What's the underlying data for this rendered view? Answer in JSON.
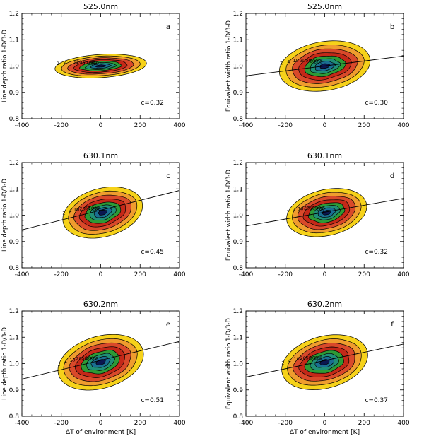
{
  "colors": {
    "levels": [
      "#f6d21a",
      "#ef9c2e",
      "#d9492a",
      "#c42818",
      "#2d9a36",
      "#1f8f76",
      "#1a6e92",
      "#0b1650"
    ],
    "outline": "#000000"
  },
  "level_values": [
    2,
    4,
    10,
    20,
    50,
    100,
    200,
    400
  ],
  "chart_data": [
    {
      "type": "contour",
      "panel": "a",
      "title": "525.0nm",
      "xlabel": "",
      "ylabel": "Line depth ratio  1-D/3-D",
      "xlim": [
        -400,
        400
      ],
      "ylim": [
        0.8,
        1.2
      ],
      "xticks": [
        -400,
        -200,
        0,
        200,
        400
      ],
      "yticks": [
        0.8,
        0.9,
        1.0,
        1.1,
        1.2
      ],
      "annotation": "c=0.32",
      "fit_line": null,
      "distribution": {
        "center": [
          0,
          1.0
        ],
        "sd_x": 95,
        "sd_y": 0.018,
        "rho": 0.25,
        "extent": 2.45,
        "taper": 0.12
      },
      "contour_labels": [
        "2",
        "4",
        "10",
        "20",
        "50",
        "100",
        "200"
      ]
    },
    {
      "type": "contour",
      "panel": "b",
      "title": "525.0nm",
      "xlabel": "",
      "ylabel": "Equivalent width ratio  1-D/3-D",
      "xlim": [
        -400,
        400
      ],
      "ylim": [
        0.8,
        1.2
      ],
      "xticks": [
        -400,
        -200,
        0,
        200,
        400
      ],
      "yticks": [
        0.8,
        0.9,
        1.0,
        1.1,
        1.2
      ],
      "annotation": "c=0.30",
      "fit_line": {
        "x": [
          -400,
          400
        ],
        "y": [
          0.963,
          1.038
        ]
      },
      "distribution": {
        "center": [
          0,
          1.0
        ],
        "sd_x": 95,
        "sd_y": 0.038,
        "rho": 0.3,
        "extent": 2.45,
        "taper": 0.1
      },
      "contour_labels": [
        "2",
        "4",
        "10",
        "20",
        "50",
        "100",
        "200"
      ]
    },
    {
      "type": "contour",
      "panel": "c",
      "title": "630.1nm",
      "xlabel": "",
      "ylabel": "Line depth ratio  1-D/3-D",
      "xlim": [
        -400,
        400
      ],
      "ylim": [
        0.8,
        1.2
      ],
      "xticks": [
        -400,
        -200,
        0,
        200,
        400
      ],
      "yticks": [
        0.8,
        0.9,
        1.0,
        1.1,
        1.2
      ],
      "annotation": "c=0.45",
      "fit_line": {
        "x": [
          -400,
          400
        ],
        "y": [
          0.944,
          1.094
        ]
      },
      "distribution": {
        "center": [
          10,
          1.01
        ],
        "sd_x": 90,
        "sd_y": 0.04,
        "rho": 0.45,
        "extent": 2.3,
        "taper": 0.05
      },
      "contour_labels": [
        "2",
        "4",
        "10",
        "20",
        "50",
        "100",
        "200"
      ]
    },
    {
      "type": "contour",
      "panel": "d",
      "title": "630.1nm",
      "xlabel": "",
      "ylabel": "Equivalent width ratio  1-D/3-D",
      "xlim": [
        -400,
        400
      ],
      "ylim": [
        0.8,
        1.2
      ],
      "xticks": [
        -400,
        -200,
        0,
        200,
        400
      ],
      "yticks": [
        0.8,
        0.9,
        1.0,
        1.1,
        1.2
      ],
      "annotation": "c=0.32",
      "fit_line": {
        "x": [
          -400,
          400
        ],
        "y": [
          0.959,
          1.064
        ]
      },
      "distribution": {
        "center": [
          10,
          1.01
        ],
        "sd_x": 90,
        "sd_y": 0.038,
        "rho": 0.4,
        "extent": 2.3,
        "taper": 0.05
      },
      "contour_labels": [
        "2",
        "4",
        "10",
        "20",
        "50",
        "100",
        "200"
      ]
    },
    {
      "type": "contour",
      "panel": "e",
      "title": "630.2nm",
      "xlabel": "ΔT of environment [K]",
      "ylabel": "Line depth ratio  1-D/3-D",
      "xlim": [
        -400,
        400
      ],
      "ylim": [
        0.8,
        1.2
      ],
      "xticks": [
        -400,
        -200,
        0,
        200,
        400
      ],
      "yticks": [
        0.8,
        0.9,
        1.0,
        1.1,
        1.2
      ],
      "annotation": "c=0.51",
      "fit_line": {
        "x": [
          -400,
          400
        ],
        "y": [
          0.941,
          1.084
        ]
      },
      "distribution": {
        "center": [
          0,
          1.005
        ],
        "sd_x": 95,
        "sd_y": 0.042,
        "rho": 0.5,
        "extent": 2.35,
        "taper": 0.05
      },
      "contour_labels": [
        "2",
        "4",
        "10",
        "20",
        "50",
        "100",
        "200"
      ]
    },
    {
      "type": "contour",
      "panel": "f",
      "title": "630.2nm",
      "xlabel": "ΔT of environment [K]",
      "ylabel": "Equivalent width ratio  1-D/3-D",
      "xlim": [
        -400,
        400
      ],
      "ylim": [
        0.8,
        1.2
      ],
      "xticks": [
        -400,
        -200,
        0,
        200,
        400
      ],
      "yticks": [
        0.8,
        0.9,
        1.0,
        1.1,
        1.2
      ],
      "annotation": "c=0.37",
      "fit_line": {
        "x": [
          -400,
          400
        ],
        "y": [
          0.949,
          1.074
        ]
      },
      "distribution": {
        "center": [
          0,
          1.005
        ],
        "sd_x": 95,
        "sd_y": 0.042,
        "rho": 0.45,
        "extent": 2.35,
        "taper": 0.05
      },
      "contour_labels": [
        "2",
        "4",
        "10",
        "20",
        "50",
        "100",
        "200"
      ]
    }
  ]
}
